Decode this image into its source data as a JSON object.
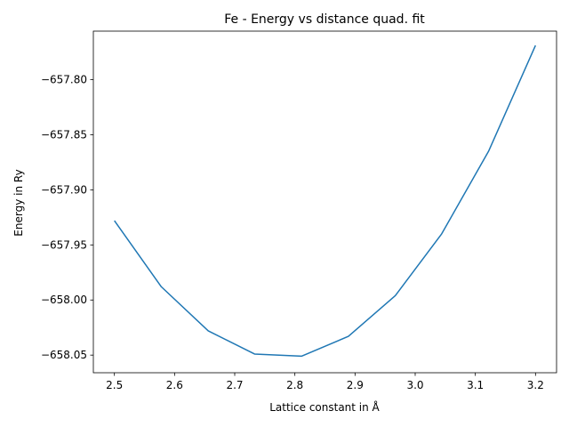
{
  "chart_data": {
    "type": "line",
    "title": "Fe - Energy vs distance quad. fit",
    "xlabel": "Lattice constant in Å",
    "ylabel": "Energy in Ry",
    "xlim": [
      2.465,
      3.235
    ],
    "ylim": [
      -658.066,
      -657.756
    ],
    "xticks": [
      2.5,
      2.6,
      2.7,
      2.8,
      2.9,
      3.0,
      3.1,
      3.2
    ],
    "xtick_labels": [
      "2.5",
      "2.6",
      "2.7",
      "2.8",
      "2.9",
      "3.0",
      "3.1",
      "3.2"
    ],
    "yticks": [
      -657.8,
      -657.85,
      -657.9,
      -657.95,
      -658.0,
      -658.05
    ],
    "ytick_labels": [
      "−657.80",
      "−657.85",
      "−657.90",
      "−657.95",
      "−658.00",
      "−658.05"
    ],
    "grid": false,
    "series": [
      {
        "color": "#1f77b4",
        "x": [
          2.5,
          2.578,
          2.656,
          2.733,
          2.811,
          2.889,
          2.967,
          3.044,
          3.122,
          3.2
        ],
        "y": [
          -657.928,
          -657.988,
          -658.028,
          -658.049,
          -658.051,
          -658.033,
          -657.996,
          -657.94,
          -657.865,
          -657.769
        ]
      }
    ]
  }
}
